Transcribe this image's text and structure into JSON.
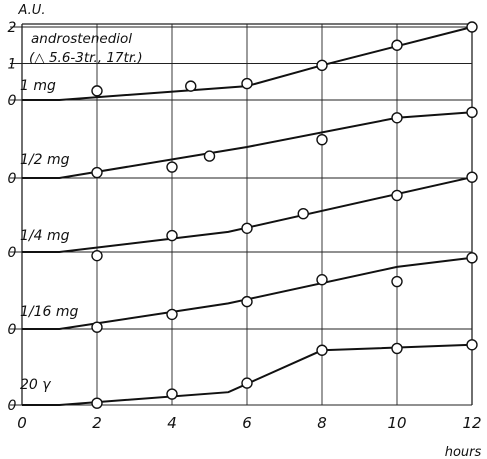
{
  "chart_data": {
    "type": "line",
    "yunit": "A.U.",
    "xunit": "hours",
    "x_ticks": [
      "0",
      "2",
      "4",
      "6",
      "8",
      "10",
      "12"
    ],
    "xlim": [
      0,
      12
    ],
    "ylim_per_panel": [
      0,
      2
    ],
    "grid": true,
    "title_lines": [
      "androstenediol",
      "(△ 5.6-3tr., 17tr.)"
    ],
    "series": [
      {
        "name": "1 mg",
        "y_tick_labels": [
          "0",
          "1",
          "2"
        ],
        "curve": [
          [
            0,
            0
          ],
          [
            1,
            0
          ],
          [
            6,
            0.38
          ],
          [
            8,
            0.95
          ],
          [
            12,
            2.0
          ]
        ],
        "points": [
          [
            2,
            0.25
          ],
          [
            4.5,
            0.38
          ],
          [
            6,
            0.45
          ],
          [
            8,
            0.95
          ],
          [
            10,
            1.5
          ],
          [
            12,
            2.0
          ]
        ]
      },
      {
        "name": "1/2 mg",
        "y_tick_labels": [
          "0"
        ],
        "curve": [
          [
            0,
            0
          ],
          [
            1,
            0
          ],
          [
            6,
            0.85
          ],
          [
            10,
            1.65
          ],
          [
            12,
            1.8
          ]
        ],
        "points": [
          [
            2,
            0.15
          ],
          [
            4,
            0.3
          ],
          [
            5,
            0.6
          ],
          [
            8,
            1.05
          ],
          [
            10,
            1.65
          ],
          [
            12,
            1.8
          ]
        ]
      },
      {
        "name": "1/4 mg",
        "y_tick_labels": [
          "0"
        ],
        "curve": [
          [
            0,
            0
          ],
          [
            1,
            0
          ],
          [
            5.5,
            0.55
          ],
          [
            12,
            2.05
          ]
        ],
        "points": [
          [
            2,
            -0.1
          ],
          [
            4,
            0.45
          ],
          [
            6,
            0.65
          ],
          [
            7.5,
            1.05
          ],
          [
            10,
            1.55
          ],
          [
            12,
            2.05
          ]
        ]
      },
      {
        "name": "1/16 mg",
        "y_tick_labels": [
          "0"
        ],
        "curve": [
          [
            0,
            0
          ],
          [
            1,
            0
          ],
          [
            5.5,
            0.7
          ],
          [
            10,
            1.7
          ],
          [
            12,
            1.95
          ]
        ],
        "points": [
          [
            2,
            0.05
          ],
          [
            4,
            0.4
          ],
          [
            6,
            0.75
          ],
          [
            8,
            1.35
          ],
          [
            10,
            1.3
          ],
          [
            12,
            1.95
          ]
        ]
      },
      {
        "name": "20 γ",
        "y_tick_labels": [
          "0"
        ],
        "curve": [
          [
            0,
            0
          ],
          [
            1,
            0
          ],
          [
            5.5,
            0.35
          ],
          [
            8,
            1.5
          ],
          [
            12,
            1.65
          ]
        ],
        "points": [
          [
            2,
            0.05
          ],
          [
            4,
            0.3
          ],
          [
            6,
            0.6
          ],
          [
            8,
            1.5
          ],
          [
            10,
            1.55
          ],
          [
            12,
            1.65
          ]
        ]
      }
    ]
  }
}
